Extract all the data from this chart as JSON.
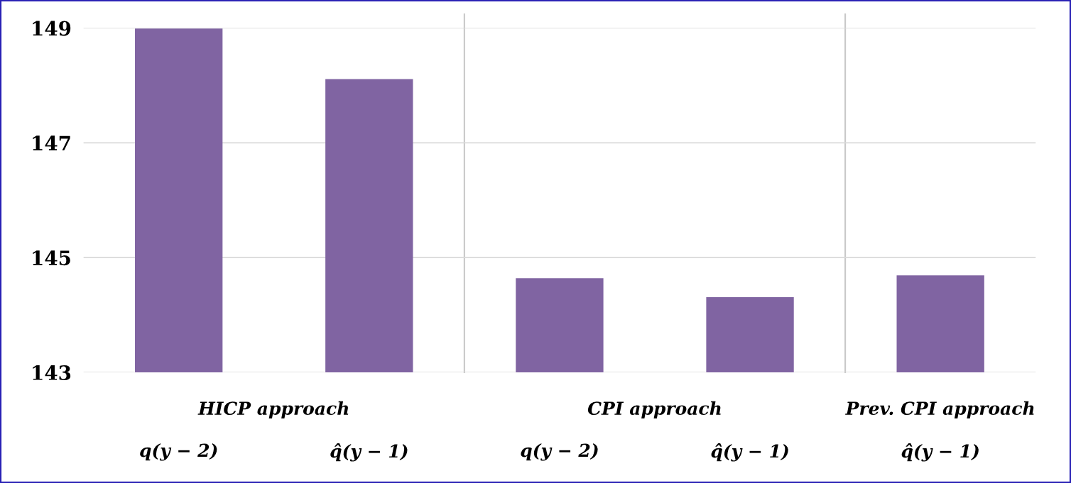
{
  "chart_data": {
    "type": "bar",
    "categories": [
      "q(y − 2)",
      "q̂(y − 1)",
      "q(y − 2)",
      "q̂(y − 1)",
      "q̂(y − 1)"
    ],
    "values": [
      148.99,
      148.11,
      144.64,
      144.31,
      144.69
    ],
    "color": "#8064a2",
    "ylim": [
      143,
      149
    ],
    "yticks": [
      143,
      145,
      147,
      149
    ],
    "grid": "y",
    "annotations": [
      "HICP approach",
      "CPI approach",
      "Prev. CPI approach"
    ]
  }
}
